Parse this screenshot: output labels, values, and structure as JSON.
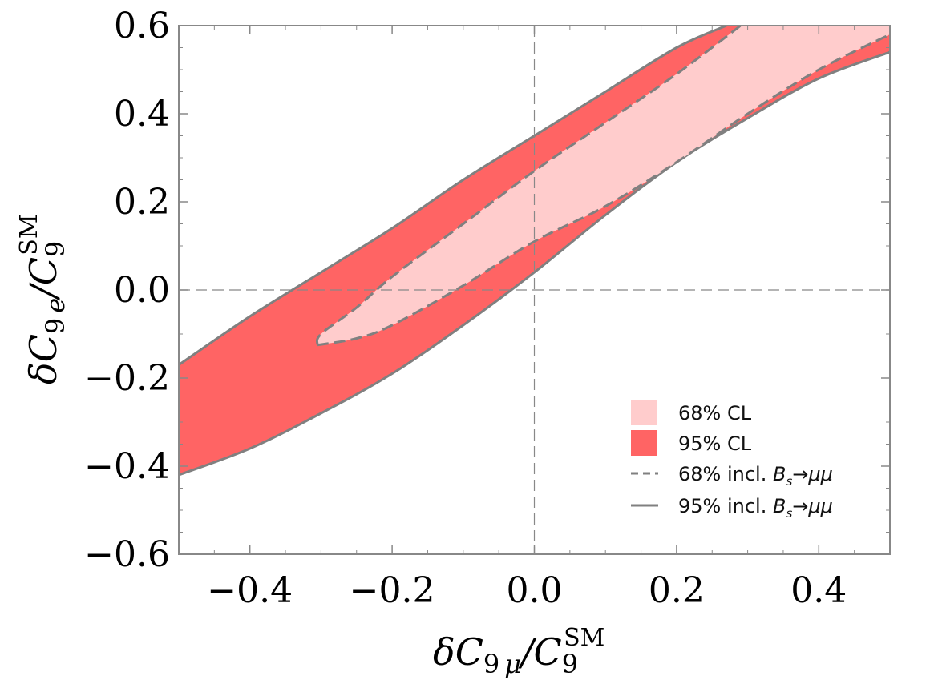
{
  "chart_data": {
    "type": "area",
    "xlabel": "δC9 μ/C9SM",
    "ylabel": "δC9 e/C9SM",
    "xlim": [
      -0.5,
      0.5
    ],
    "ylim": [
      -0.6,
      0.6
    ],
    "xticks": [
      -0.4,
      -0.2,
      0.0,
      0.2,
      0.4
    ],
    "yticks": [
      -0.6,
      -0.4,
      -0.2,
      0.0,
      0.2,
      0.4,
      0.6
    ],
    "xtick_labels": [
      "−0.4",
      "−0.2",
      "0.0",
      "0.2",
      "0.4"
    ],
    "ytick_labels": [
      "−0.6",
      "−0.4",
      "−0.2",
      "0.0",
      "0.2",
      "0.4",
      "0.6"
    ],
    "reference_lines": {
      "x": 0.0,
      "y": 0.0
    },
    "series": [
      {
        "name": "95% CL",
        "color": "#ff6464",
        "upper": [
          [
            -0.5,
            -0.17
          ],
          [
            -0.4,
            -0.06
          ],
          [
            -0.3,
            0.04
          ],
          [
            -0.2,
            0.14
          ],
          [
            -0.1,
            0.25
          ],
          [
            0.0,
            0.35
          ],
          [
            0.1,
            0.45
          ],
          [
            0.2,
            0.55
          ],
          [
            0.27,
            0.6
          ]
        ],
        "lower": [
          [
            -0.5,
            -0.42
          ],
          [
            -0.4,
            -0.36
          ],
          [
            -0.3,
            -0.28
          ],
          [
            -0.2,
            -0.19
          ],
          [
            -0.1,
            -0.08
          ],
          [
            0.0,
            0.04
          ],
          [
            0.1,
            0.17
          ],
          [
            0.2,
            0.29
          ],
          [
            0.3,
            0.39
          ],
          [
            0.4,
            0.48
          ],
          [
            0.5,
            0.54
          ]
        ]
      },
      {
        "name": "68% CL",
        "color": "#ffcccc",
        "upper": [
          [
            -0.305,
            -0.125
          ],
          [
            -0.3,
            -0.1
          ],
          [
            -0.25,
            -0.04
          ],
          [
            -0.2,
            0.03
          ],
          [
            -0.1,
            0.15
          ],
          [
            0.0,
            0.27
          ],
          [
            0.1,
            0.38
          ],
          [
            0.2,
            0.49
          ],
          [
            0.29,
            0.6
          ]
        ],
        "lower": [
          [
            -0.305,
            -0.125
          ],
          [
            -0.25,
            -0.11
          ],
          [
            -0.2,
            -0.08
          ],
          [
            -0.1,
            0.01
          ],
          [
            0.0,
            0.11
          ],
          [
            0.1,
            0.19
          ],
          [
            0.2,
            0.29
          ],
          [
            0.3,
            0.4
          ],
          [
            0.4,
            0.5
          ],
          [
            0.5,
            0.58
          ]
        ],
        "top_edge_end": [
          0.5,
          0.6
        ]
      }
    ],
    "legend": {
      "position": "bottom-right",
      "entries": [
        {
          "label": "68% CL",
          "kind": "swatch",
          "color": "#ffcccc"
        },
        {
          "label": "95% CL",
          "kind": "swatch",
          "color": "#ff6464"
        },
        {
          "label": "68% incl. ",
          "math": "B",
          "sub": "s",
          "suffix": "→μμ",
          "kind": "dashed-line",
          "color": "#808080"
        },
        {
          "label": "95% incl. ",
          "math": "B",
          "sub": "s",
          "suffix": "→μμ",
          "kind": "solid-line",
          "color": "#808080"
        }
      ]
    },
    "frame_color": "#888888"
  }
}
